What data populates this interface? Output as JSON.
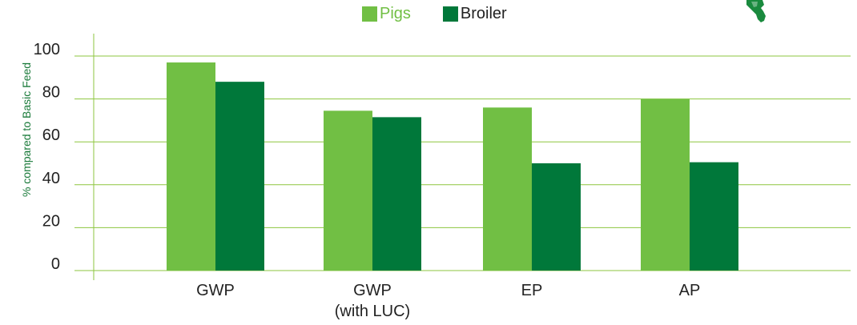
{
  "chart_data": {
    "type": "bar",
    "categories": [
      "GWP",
      "GWP\n(with LUC)",
      "EP",
      "AP"
    ],
    "series": [
      {
        "name": "Pigs",
        "color": "#71bf44",
        "values": [
          97,
          74.5,
          76,
          80
        ]
      },
      {
        "name": "Broiler",
        "color": "#00783a",
        "values": [
          88,
          71.5,
          50,
          50.5
        ]
      }
    ],
    "ylabel": "% compared to Basic Feed",
    "xlabel": "",
    "ylim": [
      0,
      100
    ],
    "yticks": [
      0,
      20,
      40,
      60,
      80,
      100
    ],
    "grid": true,
    "gridColor": "#8dc63f",
    "legend_position": "top-center"
  }
}
